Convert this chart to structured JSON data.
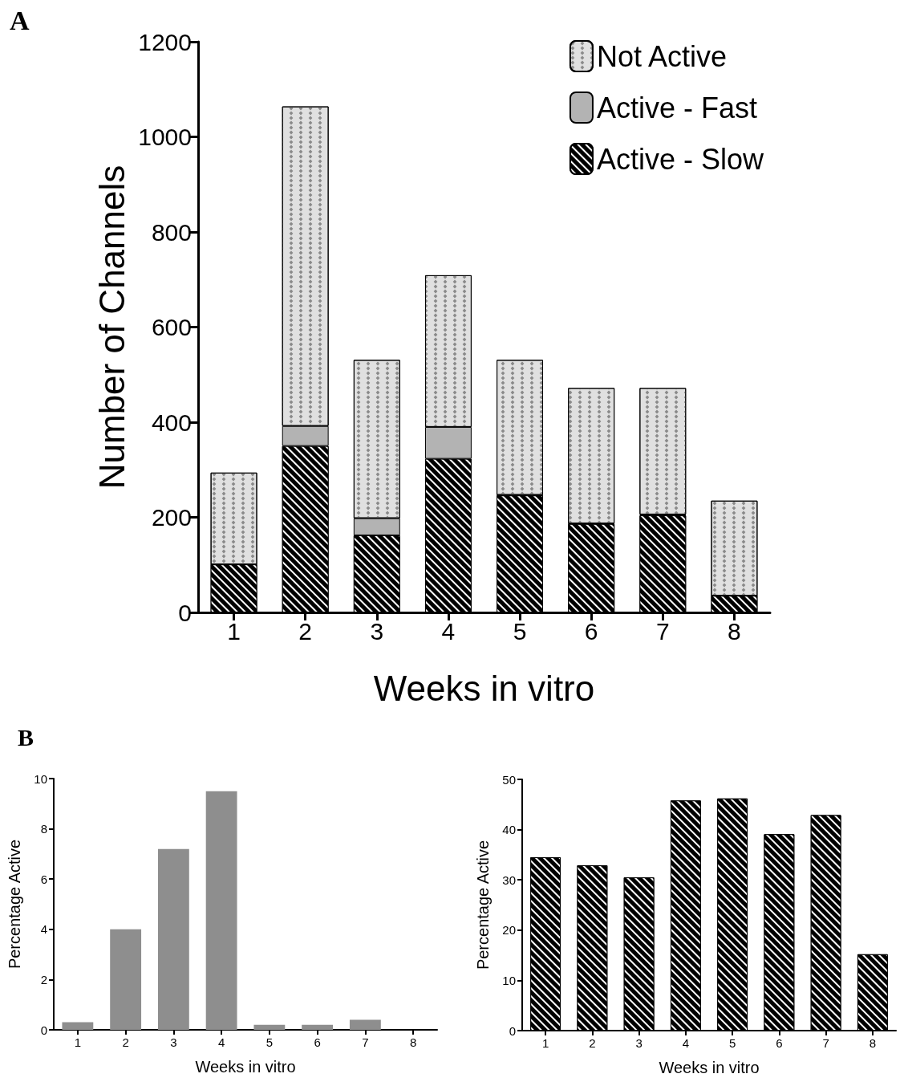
{
  "chart_data": [
    {
      "type": "bar",
      "stacked": true,
      "annotations": [
        "A"
      ],
      "xlabel": "Weeks in vitro",
      "ylabel": "Number of Channels",
      "categories": [
        "1",
        "2",
        "3",
        "4",
        "5",
        "6",
        "7",
        "8"
      ],
      "ylim": [
        0,
        1200
      ],
      "yticks": [
        0,
        200,
        400,
        600,
        800,
        1000,
        1200
      ],
      "grid": false,
      "legend": "top right",
      "series": [
        {
          "name": "Active - Slow",
          "color": "#000000",
          "values": [
            101,
            350,
            162,
            323,
            246,
            186,
            204,
            35
          ]
        },
        {
          "name": "Active - Fast",
          "color": "#b3b3b3",
          "values": [
            0,
            42,
            36,
            67,
            1,
            1,
            2,
            0
          ]
        },
        {
          "name": "Not Active",
          "color": "#e0e0e0",
          "values": [
            193,
            672,
            333,
            319,
            284,
            285,
            266,
            200
          ]
        }
      ]
    },
    {
      "type": "bar",
      "annotations": [
        "B"
      ],
      "xlabel": "Weeks in vitro",
      "ylabel": "Percentage Active",
      "categories": [
        "1",
        "2",
        "3",
        "4",
        "5",
        "6",
        "7",
        "8"
      ],
      "ylim": [
        0,
        10
      ],
      "yticks": [
        0,
        2,
        4,
        6,
        8,
        10
      ],
      "grid": false,
      "legend": false,
      "series": [
        {
          "color": "#8e8e8e",
          "values": [
            0.3,
            4.0,
            7.2,
            9.5,
            0.2,
            0.2,
            0.4,
            0
          ]
        }
      ]
    },
    {
      "type": "bar",
      "xlabel": "Weeks in vitro",
      "ylabel": "Percentage Active",
      "categories": [
        "1",
        "2",
        "3",
        "4",
        "5",
        "6",
        "7",
        "8"
      ],
      "ylim": [
        0,
        50
      ],
      "yticks": [
        0,
        10,
        20,
        30,
        40,
        50
      ],
      "grid": false,
      "legend": false,
      "series": [
        {
          "color": "#000000",
          "values": [
            34.5,
            32.9,
            30.5,
            45.8,
            46.2,
            39.1,
            42.9,
            15.2
          ]
        }
      ]
    }
  ]
}
